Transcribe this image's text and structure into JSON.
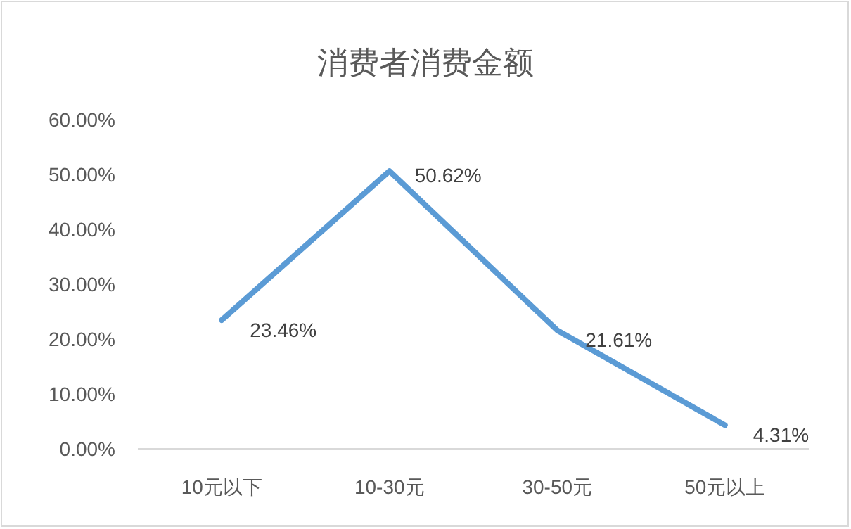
{
  "chart_data": {
    "type": "line",
    "title": "消费者消费金额",
    "categories": [
      "10元以下",
      "10-30元",
      "30-50元",
      "50元以上"
    ],
    "series": [
      {
        "color": "#5b9bd5",
        "values": [
          23.46,
          50.62,
          21.61,
          4.31
        ],
        "value_labels": [
          "23.46%",
          "50.62%",
          "21.61%",
          "4.31%"
        ]
      }
    ],
    "ylim": [
      0,
      60
    ],
    "yticks": [
      {
        "value": 0,
        "label": "0.00%"
      },
      {
        "value": 10,
        "label": "10.00%"
      },
      {
        "value": 20,
        "label": "20.00%"
      },
      {
        "value": 30,
        "label": "30.00%"
      },
      {
        "value": 40,
        "label": "40.00%"
      },
      {
        "value": 50,
        "label": "50.00%"
      },
      {
        "value": 60,
        "label": "60.00%"
      }
    ]
  }
}
